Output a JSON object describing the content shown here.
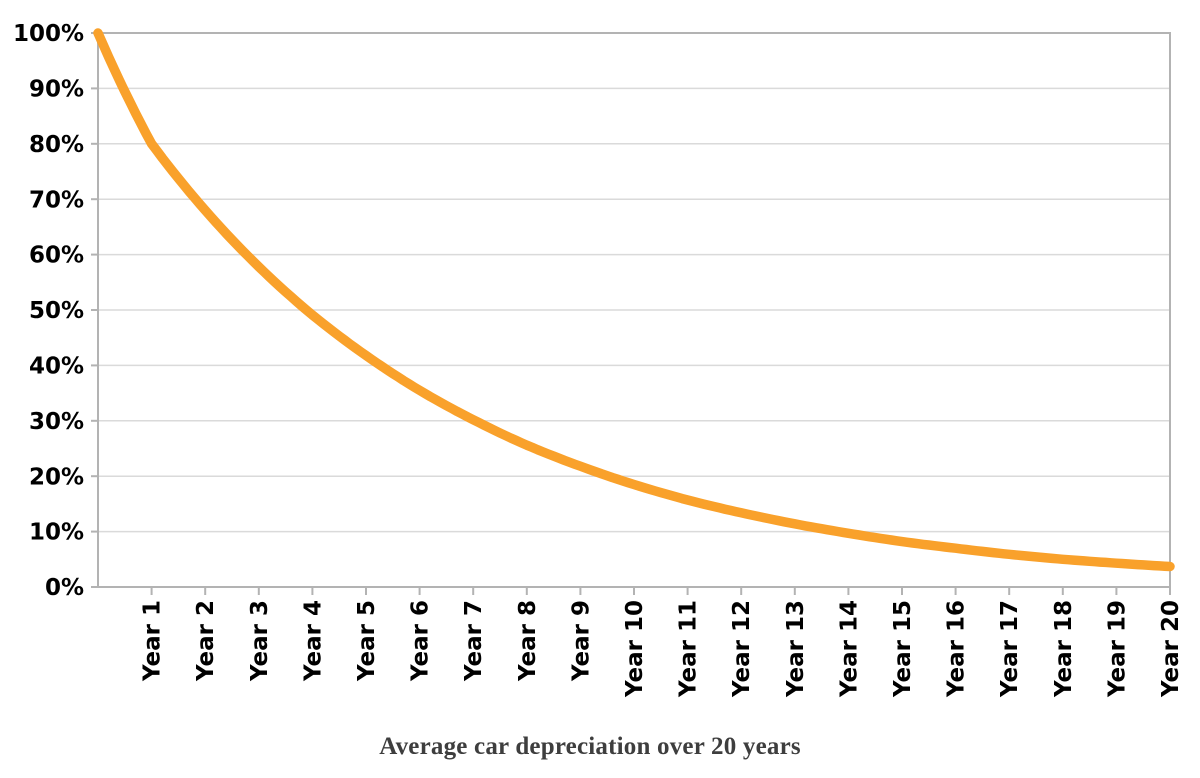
{
  "page": {
    "background": "#ffffff"
  },
  "chart_data": {
    "type": "line",
    "title": "Average car depreciation over 20 years",
    "xlabel": "",
    "ylabel": "",
    "x_categories": [
      "Year 1",
      "Year 2",
      "Year 3",
      "Year 4",
      "Year 5",
      "Year 6",
      "Year 7",
      "Year 8",
      "Year 9",
      "Year 10",
      "Year 11",
      "Year 12",
      "Year 13",
      "Year 14",
      "Year 15",
      "Year 16",
      "Year 17",
      "Year 18",
      "Year 19",
      "Year 20"
    ],
    "y_tick_labels": [
      "0%",
      "10%",
      "20%",
      "30%",
      "40%",
      "50%",
      "60%",
      "70%",
      "80%",
      "90%",
      "100%"
    ],
    "ylim": [
      0,
      100
    ],
    "ytick_step": 10,
    "grid": true,
    "legend": "none",
    "series": [
      {
        "name": "car-value-retained-percent",
        "x": [
          0,
          1,
          2,
          3,
          4,
          5,
          6,
          7,
          8,
          9,
          10,
          11,
          12,
          13,
          14,
          15,
          16,
          17,
          18,
          19,
          20
        ],
        "values": [
          100,
          80,
          68,
          57.8,
          49.1,
          41.8,
          35.5,
          30.2,
          25.6,
          21.8,
          18.5,
          15.7,
          13.4,
          11.4,
          9.7,
          8.2,
          7.0,
          5.9,
          5.0,
          4.3,
          3.7
        ],
        "color": "#F9A12B"
      }
    ],
    "colors": {
      "line": "#F9A12B",
      "gridline": "#dadada",
      "axis": "#b3b3b3",
      "tick_label": "#000000",
      "title": "#3e3e3e",
      "background": "#ffffff"
    }
  }
}
